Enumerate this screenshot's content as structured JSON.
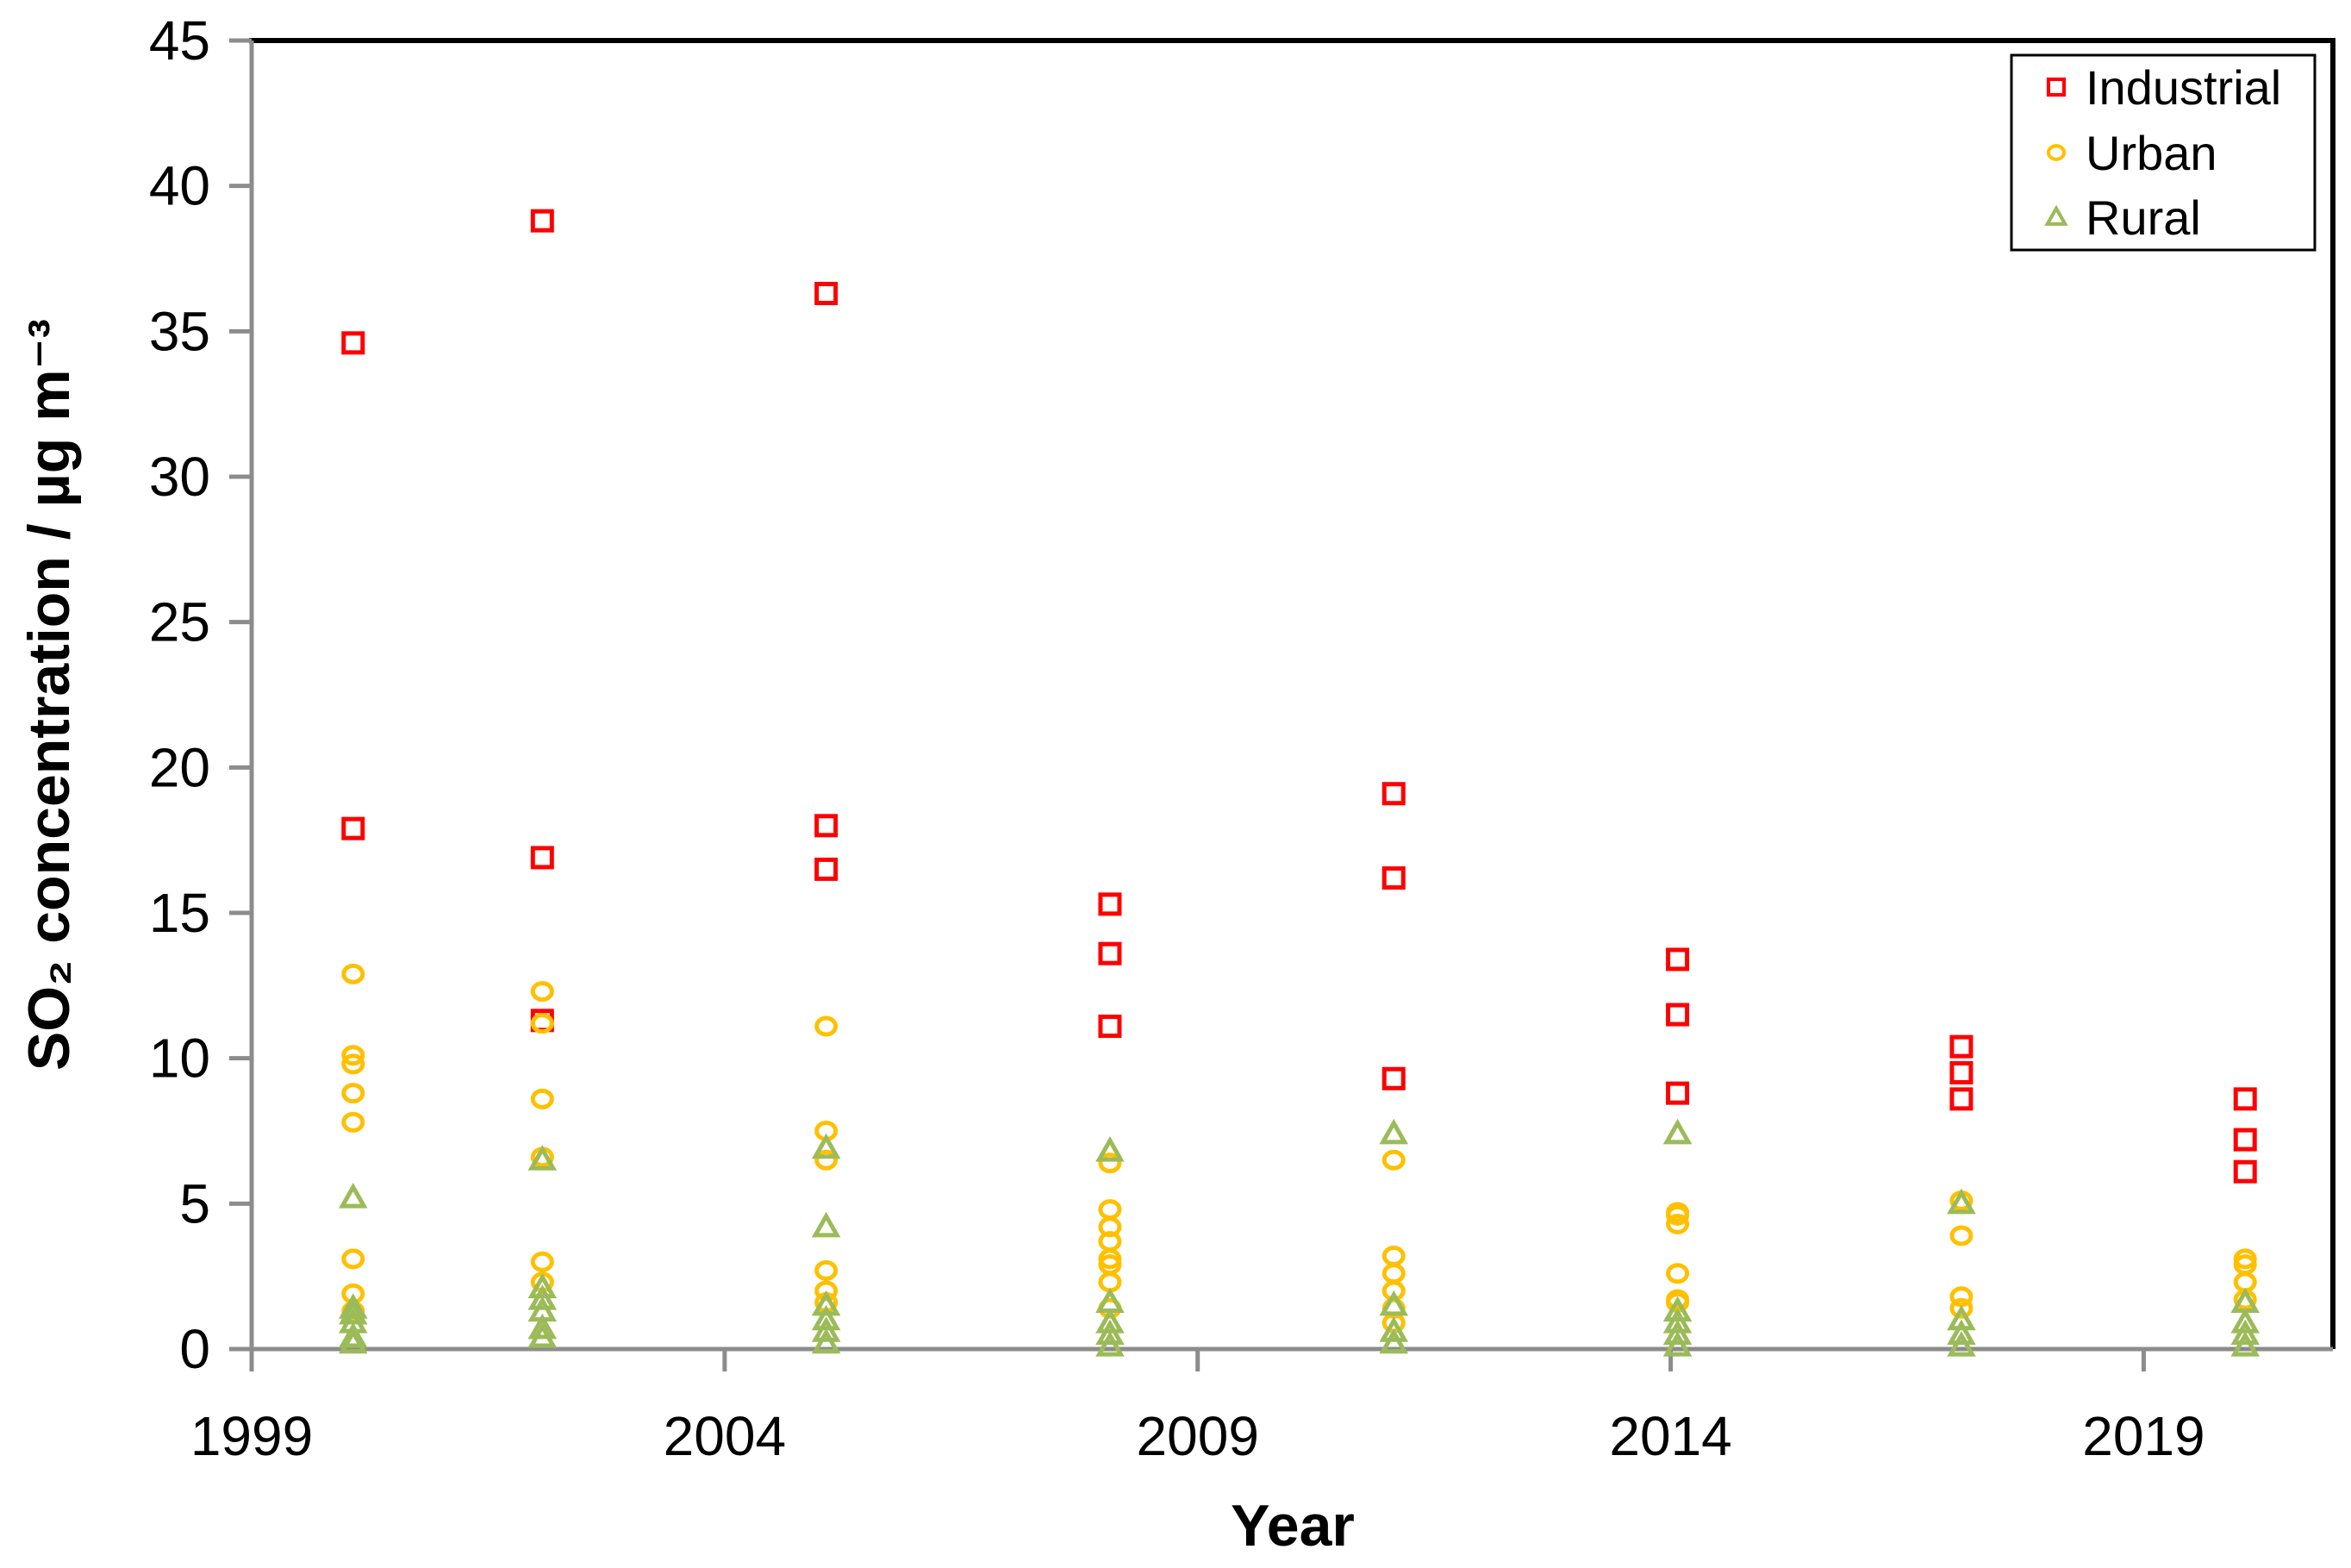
{
  "chart_data": {
    "type": "scatter",
    "title": "",
    "xlabel": "Year",
    "ylabel": "SO₂ concentration / µg m⁻³",
    "xlim": [
      1999,
      2021
    ],
    "ylim": [
      0,
      45
    ],
    "x_ticks": [
      1999,
      2004,
      2009,
      2014,
      2019
    ],
    "y_ticks": [
      0,
      5,
      10,
      15,
      20,
      25,
      30,
      35,
      40,
      45
    ],
    "grid": "off",
    "legend_position": "top-right-inside",
    "series": [
      {
        "name": "Industrial",
        "marker": "square",
        "color": "#FF0000",
        "data": [
          {
            "year": 2000,
            "values": [
              34.6,
              17.9
            ]
          },
          {
            "year": 2002,
            "values": [
              38.8,
              16.9,
              11.3
            ]
          },
          {
            "year": 2005,
            "values": [
              36.3,
              18.0,
              16.5
            ]
          },
          {
            "year": 2008,
            "values": [
              15.3,
              13.6,
              11.1
            ]
          },
          {
            "year": 2011,
            "values": [
              19.1,
              16.2,
              9.3
            ]
          },
          {
            "year": 2014,
            "values": [
              13.4,
              11.5,
              8.8
            ]
          },
          {
            "year": 2017,
            "values": [
              10.4,
              9.5,
              8.6
            ]
          },
          {
            "year": 2020,
            "values": [
              8.6,
              7.2,
              6.1
            ]
          }
        ]
      },
      {
        "name": "Urban",
        "marker": "circle",
        "color": "#FFC000",
        "data": [
          {
            "year": 2000,
            "values": [
              12.9,
              10.1,
              9.8,
              8.8,
              7.8,
              3.1,
              1.9,
              1.3
            ]
          },
          {
            "year": 2002,
            "values": [
              12.3,
              11.2,
              8.6,
              6.6,
              3.0,
              2.3
            ]
          },
          {
            "year": 2005,
            "values": [
              11.1,
              7.5,
              6.5,
              2.7,
              2.0,
              1.6
            ]
          },
          {
            "year": 2008,
            "values": [
              6.4,
              4.8,
              4.2,
              3.7,
              3.1,
              2.9,
              2.3,
              1.4
            ]
          },
          {
            "year": 2011,
            "values": [
              6.5,
              3.2,
              2.6,
              2.0,
              1.4,
              0.9
            ]
          },
          {
            "year": 2014,
            "values": [
              4.7,
              4.6,
              4.3,
              2.6,
              1.7,
              1.6
            ]
          },
          {
            "year": 2017,
            "values": [
              5.1,
              3.9,
              1.8,
              1.4
            ]
          },
          {
            "year": 2020,
            "values": [
              3.1,
              2.9,
              2.3,
              1.7
            ]
          }
        ]
      },
      {
        "name": "Rural",
        "marker": "triangle",
        "color": "#9BBB59",
        "data": [
          {
            "year": 2000,
            "values": [
              5.2,
              1.4,
              1.2,
              0.9,
              0.4,
              0.2
            ]
          },
          {
            "year": 2002,
            "values": [
              6.5,
              2.1,
              1.7,
              1.3,
              0.7,
              0.4
            ]
          },
          {
            "year": 2005,
            "values": [
              6.9,
              4.2,
              1.5,
              1.0,
              0.6,
              0.2
            ]
          },
          {
            "year": 2008,
            "values": [
              6.8,
              1.6,
              0.9,
              0.5,
              0.1
            ]
          },
          {
            "year": 2011,
            "values": [
              7.4,
              1.5,
              0.6,
              0.2
            ]
          },
          {
            "year": 2014,
            "values": [
              7.4,
              1.3,
              0.9,
              0.5,
              0.1
            ]
          },
          {
            "year": 2017,
            "values": [
              5.0,
              1.0,
              0.5,
              0.1
            ]
          },
          {
            "year": 2020,
            "values": [
              1.6,
              0.9,
              0.5,
              0.1
            ]
          }
        ]
      }
    ],
    "colors": {
      "axis_line": "#8C8C8C",
      "plot_border": "#000000",
      "background": "#FFFFFF",
      "text": "#000000"
    }
  }
}
